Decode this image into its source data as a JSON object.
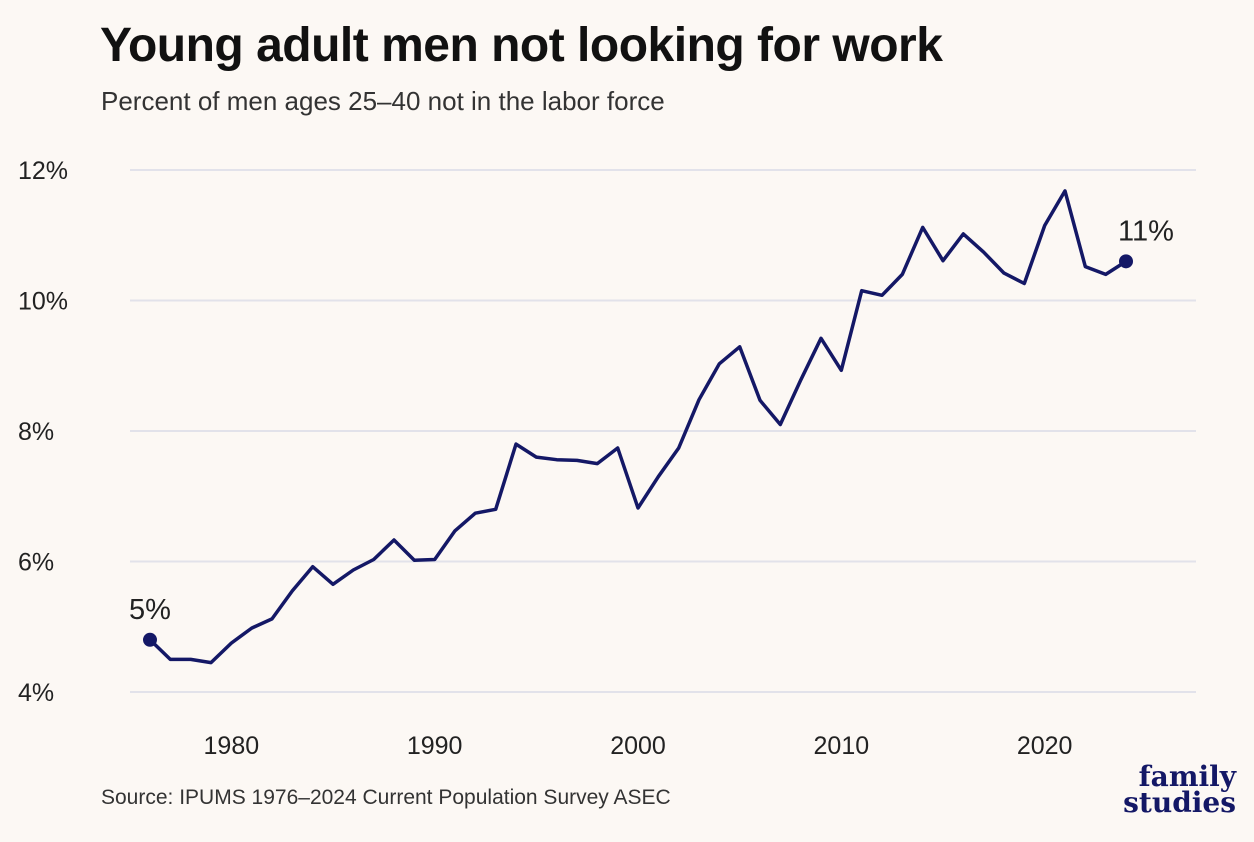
{
  "title": "Young adult men not looking for work",
  "subtitle": "Percent of men ages 25–40 not in the labor force",
  "source": "Source: IPUMS 1976–2024 Current Population Survey ASEC",
  "logo": {
    "line1": "family",
    "line2": "studies"
  },
  "colors": {
    "line": "#141866",
    "grid": "#e2e2ea",
    "background": "#fcf8f4"
  },
  "chart_data": {
    "type": "line",
    "title": "Young adult men not looking for work",
    "subtitle": "Percent of men ages 25–40 not in the labor force",
    "xlabel": "",
    "ylabel": "",
    "xlim": [
      1976,
      2024
    ],
    "ylim": [
      4,
      12
    ],
    "x_ticks": [
      1980,
      1990,
      2000,
      2010,
      2020
    ],
    "y_ticks": [
      {
        "value": 4,
        "label": "4%"
      },
      {
        "value": 6,
        "label": "6%"
      },
      {
        "value": 8,
        "label": "8%"
      },
      {
        "value": 10,
        "label": "10%"
      },
      {
        "value": 12,
        "label": "12%"
      }
    ],
    "grid": "horizontal",
    "series": [
      {
        "x": [
          1976,
          1977,
          1978,
          1979,
          1980,
          1981,
          1982,
          1983,
          1984,
          1985,
          1986,
          1987,
          1988,
          1989,
          1990,
          1991,
          1992,
          1993,
          1994,
          1995,
          1996,
          1997,
          1998,
          1999,
          2000,
          2001,
          2002,
          2003,
          2004,
          2005,
          2006,
          2007,
          2008,
          2009,
          2010,
          2011,
          2012,
          2013,
          2014,
          2015,
          2016,
          2017,
          2018,
          2019,
          2020,
          2021,
          2022,
          2023,
          2024
        ],
        "values": [
          4.8,
          4.5,
          4.5,
          4.45,
          4.75,
          4.98,
          5.12,
          5.55,
          5.92,
          5.65,
          5.87,
          6.03,
          6.33,
          6.02,
          6.03,
          6.47,
          6.74,
          6.8,
          7.8,
          7.6,
          7.56,
          7.55,
          7.5,
          7.74,
          6.82,
          7.3,
          7.74,
          8.48,
          9.03,
          9.29,
          8.47,
          8.1,
          8.78,
          9.42,
          8.93,
          10.15,
          10.08,
          10.4,
          11.12,
          10.61,
          11.02,
          10.74,
          10.42,
          10.26,
          11.15,
          11.68,
          10.52,
          10.4,
          10.6
        ]
      }
    ],
    "annotations": [
      {
        "x": 1976,
        "y": 4.8,
        "label": "5%"
      },
      {
        "x": 2024,
        "y": 10.6,
        "label": "11%"
      }
    ]
  }
}
